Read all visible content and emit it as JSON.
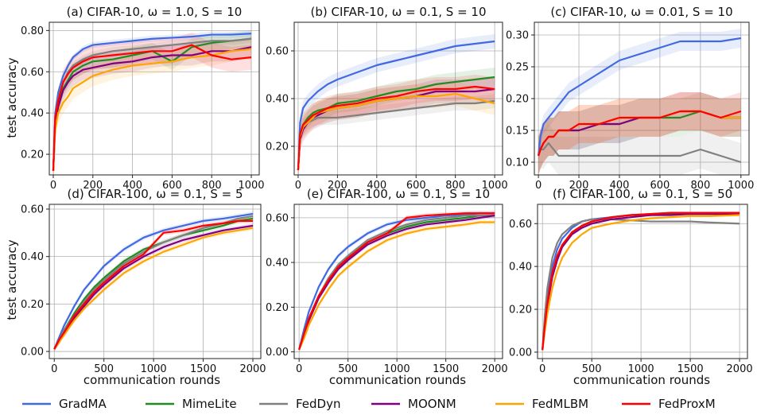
{
  "figure": {
    "ylabel": "test accuracy",
    "xlabel": "communication rounds"
  },
  "legend": [
    {
      "name": "GradMA",
      "color": "#4169E1"
    },
    {
      "name": "MimeLite",
      "color": "#228B22"
    },
    {
      "name": "FedDyn",
      "color": "#808080"
    },
    {
      "name": "MOONM",
      "color": "#800080"
    },
    {
      "name": "FedMLBM",
      "color": "#FFA500"
    },
    {
      "name": "FedProxM",
      "color": "#FF0000"
    }
  ],
  "chart_data": [
    {
      "type": "line",
      "title": "(a) CIFAR-10, ω = 1.0, S = 10",
      "xlim": [
        -20,
        1040
      ],
      "ylim": [
        0.1,
        0.84
      ],
      "xticks": [
        0,
        200,
        400,
        600,
        800,
        1000
      ],
      "yticks": [
        0.2,
        0.4,
        0.6,
        0.8
      ],
      "ytick_labels": [
        "0.20",
        "0.40",
        "0.60",
        "0.80"
      ],
      "xlabel": "",
      "ylabel": "test accuracy",
      "x": [
        0,
        10,
        25,
        50,
        75,
        100,
        150,
        200,
        300,
        400,
        500,
        600,
        700,
        800,
        900,
        1000
      ],
      "series": [
        {
          "name": "GradMA",
          "values": [
            0.12,
            0.4,
            0.5,
            0.58,
            0.63,
            0.67,
            0.71,
            0.73,
            0.74,
            0.75,
            0.76,
            0.765,
            0.77,
            0.78,
            0.78,
            0.785
          ],
          "band": 0.015
        },
        {
          "name": "MimeLite",
          "values": [
            0.12,
            0.36,
            0.44,
            0.52,
            0.56,
            0.6,
            0.63,
            0.65,
            0.66,
            0.68,
            0.7,
            0.65,
            0.72,
            0.74,
            0.75,
            0.76
          ],
          "band": 0.04
        },
        {
          "name": "FedDyn",
          "values": [
            0.12,
            0.38,
            0.47,
            0.55,
            0.6,
            0.63,
            0.66,
            0.68,
            0.7,
            0.71,
            0.72,
            0.73,
            0.74,
            0.75,
            0.75,
            0.76
          ],
          "band": 0.02
        },
        {
          "name": "MOONM",
          "values": [
            0.12,
            0.35,
            0.43,
            0.51,
            0.55,
            0.58,
            0.61,
            0.62,
            0.64,
            0.65,
            0.67,
            0.68,
            0.68,
            0.7,
            0.7,
            0.72
          ],
          "band": 0.05
        },
        {
          "name": "FedMLBM",
          "values": [
            0.12,
            0.32,
            0.4,
            0.45,
            0.48,
            0.52,
            0.55,
            0.58,
            0.61,
            0.63,
            0.64,
            0.65,
            0.67,
            0.68,
            0.7,
            0.71
          ],
          "band": 0.05
        },
        {
          "name": "FedProxM",
          "values": [
            0.12,
            0.38,
            0.46,
            0.55,
            0.59,
            0.62,
            0.65,
            0.67,
            0.68,
            0.69,
            0.7,
            0.7,
            0.73,
            0.68,
            0.66,
            0.67
          ],
          "band": 0.06
        }
      ]
    },
    {
      "type": "line",
      "title": "(b) CIFAR-10, ω = 0.1, S = 10",
      "xlim": [
        -20,
        1040
      ],
      "ylim": [
        0.08,
        0.72
      ],
      "xticks": [
        0,
        200,
        400,
        600,
        800,
        1000
      ],
      "yticks": [
        0.2,
        0.4,
        0.6
      ],
      "ytick_labels": [
        "0.20",
        "0.40",
        "0.60"
      ],
      "xlabel": "",
      "ylabel": "",
      "x": [
        0,
        10,
        25,
        50,
        75,
        100,
        150,
        200,
        300,
        400,
        500,
        600,
        700,
        800,
        900,
        1000
      ],
      "series": [
        {
          "name": "GradMA",
          "values": [
            0.1,
            0.3,
            0.36,
            0.39,
            0.41,
            0.43,
            0.46,
            0.48,
            0.51,
            0.54,
            0.56,
            0.58,
            0.6,
            0.62,
            0.63,
            0.64
          ],
          "band": 0.03
        },
        {
          "name": "MimeLite",
          "values": [
            0.1,
            0.25,
            0.29,
            0.32,
            0.34,
            0.35,
            0.36,
            0.38,
            0.39,
            0.41,
            0.43,
            0.44,
            0.46,
            0.47,
            0.48,
            0.49
          ],
          "band": 0.04
        },
        {
          "name": "FedDyn",
          "values": [
            0.1,
            0.24,
            0.28,
            0.3,
            0.31,
            0.32,
            0.32,
            0.32,
            0.33,
            0.34,
            0.35,
            0.36,
            0.37,
            0.38,
            0.38,
            0.39
          ],
          "band": 0.03
        },
        {
          "name": "MOONM",
          "values": [
            0.1,
            0.23,
            0.27,
            0.3,
            0.32,
            0.33,
            0.35,
            0.36,
            0.37,
            0.39,
            0.4,
            0.41,
            0.43,
            0.43,
            0.43,
            0.44
          ],
          "band": 0.05
        },
        {
          "name": "FedMLBM",
          "values": [
            0.1,
            0.24,
            0.28,
            0.3,
            0.32,
            0.34,
            0.35,
            0.36,
            0.37,
            0.39,
            0.4,
            0.41,
            0.41,
            0.42,
            0.4,
            0.38
          ],
          "band": 0.05
        },
        {
          "name": "FedProxM",
          "values": [
            0.1,
            0.25,
            0.29,
            0.31,
            0.33,
            0.34,
            0.36,
            0.37,
            0.38,
            0.4,
            0.41,
            0.43,
            0.44,
            0.44,
            0.45,
            0.44
          ],
          "band": 0.05
        }
      ]
    },
    {
      "type": "line",
      "title": "(c) CIFAR-10, ω = 0.01, S = 10",
      "xlim": [
        -20,
        1040
      ],
      "ylim": [
        0.08,
        0.32
      ],
      "xticks": [
        0,
        200,
        400,
        600,
        800,
        1000
      ],
      "yticks": [
        0.1,
        0.15,
        0.2,
        0.25,
        0.3
      ],
      "ytick_labels": [
        "0.10",
        "0.15",
        "0.20",
        "0.25",
        "0.30"
      ],
      "xlabel": "",
      "ylabel": "",
      "x": [
        0,
        10,
        25,
        50,
        75,
        100,
        150,
        200,
        300,
        400,
        500,
        600,
        700,
        800,
        900,
        1000
      ],
      "series": [
        {
          "name": "GradMA",
          "values": [
            0.11,
            0.14,
            0.16,
            0.17,
            0.18,
            0.19,
            0.21,
            0.22,
            0.24,
            0.26,
            0.27,
            0.28,
            0.29,
            0.29,
            0.29,
            0.295
          ],
          "band": 0.015
        },
        {
          "name": "MimeLite",
          "values": [
            0.11,
            0.12,
            0.13,
            0.14,
            0.14,
            0.15,
            0.15,
            0.15,
            0.16,
            0.16,
            0.17,
            0.17,
            0.17,
            0.18,
            0.17,
            0.17
          ],
          "band": 0.03
        },
        {
          "name": "FedDyn",
          "values": [
            0.11,
            0.12,
            0.12,
            0.13,
            0.12,
            0.11,
            0.11,
            0.11,
            0.11,
            0.11,
            0.11,
            0.11,
            0.11,
            0.12,
            0.11,
            0.1
          ],
          "band": 0.03
        },
        {
          "name": "MOONM",
          "values": [
            0.11,
            0.12,
            0.13,
            0.14,
            0.14,
            0.15,
            0.15,
            0.15,
            0.16,
            0.16,
            0.17,
            0.17,
            0.18,
            0.18,
            0.17,
            0.17
          ],
          "band": 0.03
        },
        {
          "name": "FedMLBM",
          "values": [
            0.11,
            0.12,
            0.13,
            0.14,
            0.14,
            0.15,
            0.15,
            0.16,
            0.16,
            0.17,
            0.17,
            0.17,
            0.18,
            0.18,
            0.17,
            0.17
          ],
          "band": 0.03
        },
        {
          "name": "FedProxM",
          "values": [
            0.11,
            0.12,
            0.13,
            0.14,
            0.14,
            0.15,
            0.15,
            0.16,
            0.16,
            0.17,
            0.17,
            0.17,
            0.18,
            0.18,
            0.17,
            0.18
          ],
          "band": 0.03
        }
      ]
    },
    {
      "type": "line",
      "title": "(d) CIFAR-100, ω = 0.1, S = 5",
      "xlim": [
        -50,
        2080
      ],
      "ylim": [
        -0.03,
        0.62
      ],
      "xticks": [
        0,
        500,
        1000,
        1500,
        2000
      ],
      "yticks": [
        0.0,
        0.2,
        0.4,
        0.6
      ],
      "ytick_labels": [
        "0.00",
        "0.20",
        "0.40",
        "0.60"
      ],
      "xlabel": "communication rounds",
      "ylabel": "test accuracy",
      "x": [
        0,
        50,
        100,
        200,
        300,
        400,
        500,
        700,
        900,
        1100,
        1300,
        1500,
        1700,
        1850,
        2000
      ],
      "series": [
        {
          "name": "GradMA",
          "values": [
            0.01,
            0.06,
            0.11,
            0.19,
            0.26,
            0.31,
            0.36,
            0.43,
            0.48,
            0.51,
            0.53,
            0.55,
            0.56,
            0.57,
            0.58
          ],
          "band": 0.01
        },
        {
          "name": "MimeLite",
          "values": [
            0.01,
            0.05,
            0.09,
            0.16,
            0.22,
            0.27,
            0.31,
            0.38,
            0.43,
            0.46,
            0.49,
            0.51,
            0.53,
            0.55,
            0.56
          ],
          "band": 0.01
        },
        {
          "name": "FedDyn",
          "values": [
            0.01,
            0.05,
            0.09,
            0.15,
            0.21,
            0.26,
            0.3,
            0.37,
            0.42,
            0.46,
            0.49,
            0.52,
            0.54,
            0.56,
            0.57
          ],
          "band": 0.01
        },
        {
          "name": "MOONM",
          "values": [
            0.01,
            0.04,
            0.08,
            0.14,
            0.19,
            0.24,
            0.28,
            0.35,
            0.4,
            0.44,
            0.47,
            0.49,
            0.51,
            0.52,
            0.53
          ],
          "band": 0.01
        },
        {
          "name": "FedMLBM",
          "values": [
            0.01,
            0.04,
            0.07,
            0.13,
            0.18,
            0.22,
            0.26,
            0.33,
            0.38,
            0.42,
            0.45,
            0.48,
            0.5,
            0.51,
            0.52
          ],
          "band": 0.01
        },
        {
          "name": "FedProxM",
          "values": [
            0.01,
            0.05,
            0.08,
            0.15,
            0.2,
            0.25,
            0.29,
            0.36,
            0.41,
            0.5,
            0.51,
            0.53,
            0.54,
            0.55,
            0.55
          ],
          "band": 0.01
        }
      ]
    },
    {
      "type": "line",
      "title": "(e) CIFAR-100, ω = 0.1, S = 10",
      "xlim": [
        -50,
        2080
      ],
      "ylim": [
        -0.03,
        0.66
      ],
      "xticks": [
        0,
        500,
        1000,
        1500,
        2000
      ],
      "yticks": [
        0.0,
        0.2,
        0.4,
        0.6
      ],
      "ytick_labels": [
        "0.00",
        "0.20",
        "0.40",
        "0.60"
      ],
      "xlabel": "communication rounds",
      "ylabel": "",
      "x": [
        0,
        50,
        100,
        200,
        300,
        400,
        500,
        700,
        900,
        1100,
        1300,
        1500,
        1700,
        1850,
        2000
      ],
      "series": [
        {
          "name": "GradMA",
          "values": [
            0.01,
            0.1,
            0.18,
            0.29,
            0.37,
            0.43,
            0.47,
            0.53,
            0.57,
            0.59,
            0.6,
            0.61,
            0.615,
            0.62,
            0.62
          ],
          "band": 0.01
        },
        {
          "name": "MimeLite",
          "values": [
            0.01,
            0.08,
            0.15,
            0.25,
            0.32,
            0.38,
            0.42,
            0.49,
            0.53,
            0.56,
            0.58,
            0.59,
            0.6,
            0.61,
            0.61
          ],
          "band": 0.01
        },
        {
          "name": "FedDyn",
          "values": [
            0.01,
            0.08,
            0.15,
            0.25,
            0.33,
            0.39,
            0.43,
            0.5,
            0.54,
            0.57,
            0.59,
            0.6,
            0.61,
            0.61,
            0.61
          ],
          "band": 0.01
        },
        {
          "name": "MOONM",
          "values": [
            0.01,
            0.07,
            0.14,
            0.24,
            0.31,
            0.37,
            0.41,
            0.48,
            0.52,
            0.55,
            0.57,
            0.58,
            0.59,
            0.6,
            0.61
          ],
          "band": 0.01
        },
        {
          "name": "FedMLBM",
          "values": [
            0.01,
            0.06,
            0.12,
            0.21,
            0.28,
            0.34,
            0.38,
            0.45,
            0.5,
            0.53,
            0.55,
            0.56,
            0.57,
            0.58,
            0.58
          ],
          "band": 0.01
        },
        {
          "name": "FedProxM",
          "values": [
            0.01,
            0.08,
            0.15,
            0.25,
            0.32,
            0.38,
            0.42,
            0.49,
            0.53,
            0.6,
            0.61,
            0.615,
            0.62,
            0.62,
            0.62
          ],
          "band": 0.01
        }
      ]
    },
    {
      "type": "line",
      "title": "(f) CIFAR-100, ω = 0.1, S = 50",
      "xlim": [
        -50,
        2080
      ],
      "ylim": [
        -0.03,
        0.69
      ],
      "xticks": [
        0,
        500,
        1000,
        1500,
        2000
      ],
      "yticks": [
        0.0,
        0.2,
        0.4,
        0.6
      ],
      "ytick_labels": [
        "0.00",
        "0.20",
        "0.40",
        "0.60"
      ],
      "xlabel": "communication rounds",
      "ylabel": "",
      "x": [
        0,
        25,
        50,
        100,
        150,
        200,
        300,
        400,
        500,
        700,
        900,
        1100,
        1300,
        1500,
        1700,
        2000
      ],
      "series": [
        {
          "name": "GradMA",
          "values": [
            0.01,
            0.15,
            0.26,
            0.4,
            0.48,
            0.53,
            0.58,
            0.61,
            0.62,
            0.63,
            0.64,
            0.645,
            0.65,
            0.65,
            0.65,
            0.65
          ],
          "band": 0.005
        },
        {
          "name": "MimeLite",
          "values": [
            0.01,
            0.13,
            0.23,
            0.36,
            0.44,
            0.5,
            0.56,
            0.59,
            0.61,
            0.63,
            0.64,
            0.64,
            0.645,
            0.645,
            0.645,
            0.645
          ],
          "band": 0.005
        },
        {
          "name": "FedDyn",
          "values": [
            0.01,
            0.18,
            0.3,
            0.44,
            0.51,
            0.55,
            0.59,
            0.61,
            0.62,
            0.62,
            0.615,
            0.61,
            0.61,
            0.61,
            0.605,
            0.6
          ],
          "band": 0.005
        },
        {
          "name": "MOONM",
          "values": [
            0.01,
            0.12,
            0.22,
            0.35,
            0.43,
            0.49,
            0.55,
            0.58,
            0.6,
            0.62,
            0.63,
            0.64,
            0.64,
            0.645,
            0.645,
            0.645
          ],
          "band": 0.005
        },
        {
          "name": "FedMLBM",
          "values": [
            0.01,
            0.1,
            0.18,
            0.3,
            0.38,
            0.44,
            0.51,
            0.55,
            0.58,
            0.6,
            0.615,
            0.625,
            0.63,
            0.635,
            0.635,
            0.64
          ],
          "band": 0.005
        },
        {
          "name": "FedProxM",
          "values": [
            0.01,
            0.13,
            0.23,
            0.37,
            0.45,
            0.5,
            0.56,
            0.59,
            0.61,
            0.63,
            0.64,
            0.645,
            0.65,
            0.65,
            0.65,
            0.65
          ],
          "band": 0.005
        }
      ]
    }
  ]
}
